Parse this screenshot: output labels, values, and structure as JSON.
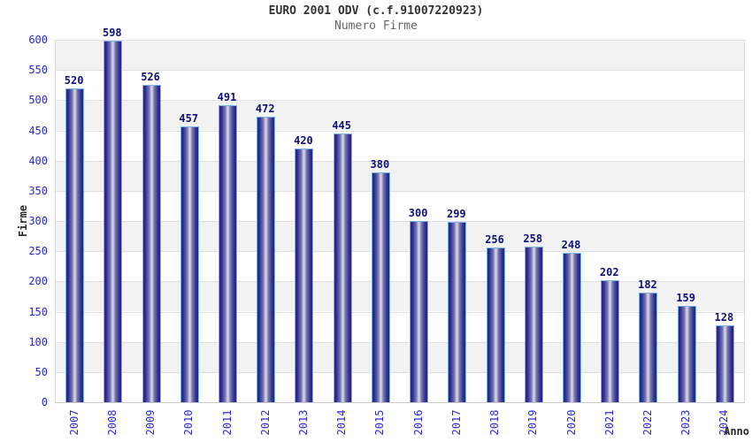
{
  "header": {
    "title": "EURO 2001 ODV (c.f.91007220923)",
    "subtitle": "Numero Firme"
  },
  "chart_data": {
    "type": "bar",
    "title": "EURO 2001 ODV (c.f.91007220923)",
    "subtitle": "Numero Firme",
    "xlabel": "Anno",
    "ylabel": "Firme",
    "categories": [
      "2007",
      "2008",
      "2009",
      "2010",
      "2011",
      "2012",
      "2013",
      "2014",
      "2015",
      "2016",
      "2017",
      "2018",
      "2019",
      "2020",
      "2021",
      "2022",
      "2023",
      "2024"
    ],
    "values": [
      520,
      598,
      526,
      457,
      491,
      472,
      420,
      445,
      380,
      300,
      299,
      256,
      258,
      248,
      202,
      182,
      159,
      128
    ],
    "ylim": [
      0,
      600
    ],
    "ytick_step": 50,
    "yticks": [
      0,
      50,
      100,
      150,
      200,
      250,
      300,
      350,
      400,
      450,
      500,
      550,
      600
    ],
    "grid": true,
    "legend": "none",
    "colors": {
      "tick_label": "#2b2bd2",
      "value_label": "#10107a",
      "bar_dark": "#24248a",
      "bar_light": "#d2d2e4",
      "bar_border": "#7db2e4",
      "band_gray": "#f2f2f2",
      "band_white": "#ffffff",
      "gridline": "#e0e0e0",
      "title": "#333333",
      "subtitle": "#666666"
    }
  }
}
